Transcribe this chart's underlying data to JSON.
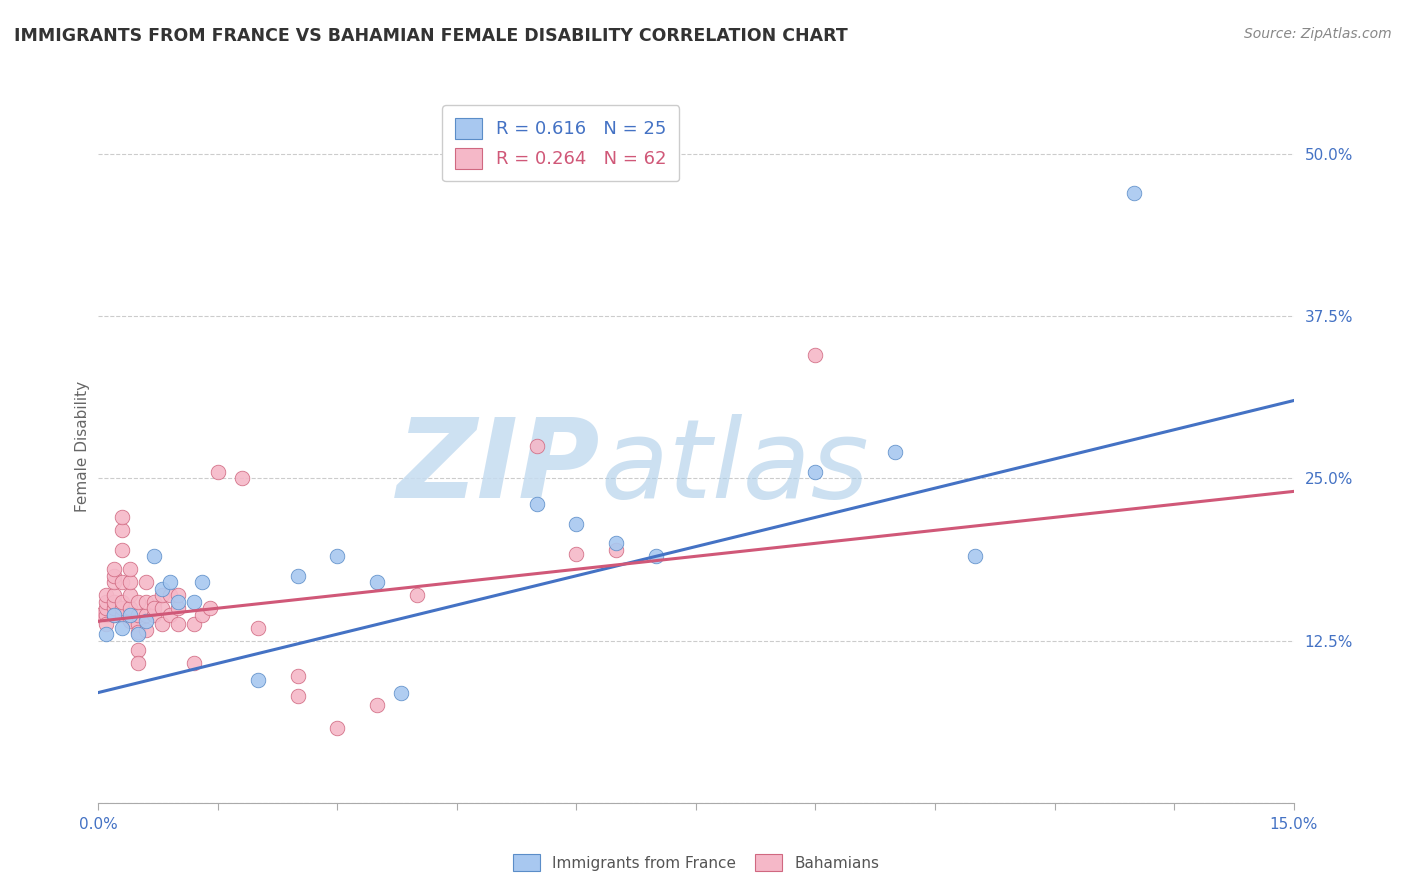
{
  "title": "IMMIGRANTS FROM FRANCE VS BAHAMIAN FEMALE DISABILITY CORRELATION CHART",
  "source": "Source: ZipAtlas.com",
  "ylabel": "Female Disability",
  "xlim": [
    0.0,
    0.15
  ],
  "ylim": [
    0.0,
    0.55
  ],
  "ytick_values": [
    0.0,
    0.125,
    0.25,
    0.375,
    0.5
  ],
  "ytick_labels": [
    "",
    "12.5%",
    "25.0%",
    "37.5%",
    "50.0%"
  ],
  "xtick_values": [
    0.0,
    0.015,
    0.03,
    0.045,
    0.06,
    0.075,
    0.09,
    0.105,
    0.12,
    0.135,
    0.15
  ],
  "xtick_labels": [
    "0.0%",
    "",
    "",
    "",
    "",
    "",
    "",
    "",
    "",
    "",
    "15.0%"
  ],
  "blue_scatter_color": "#A8C8F0",
  "blue_scatter_edge": "#5B8DC8",
  "pink_scatter_color": "#F5B8C8",
  "pink_scatter_edge": "#D06880",
  "blue_line_color": "#4472C4",
  "pink_line_color": "#D05878",
  "legend_blue_R": "0.616",
  "legend_blue_N": "25",
  "legend_pink_R": "0.264",
  "legend_pink_N": "62",
  "grid_color": "#CCCCCC",
  "watermark_color": "#C8DFF0",
  "blue_points": [
    [
      0.001,
      0.13
    ],
    [
      0.002,
      0.145
    ],
    [
      0.003,
      0.135
    ],
    [
      0.004,
      0.145
    ],
    [
      0.005,
      0.13
    ],
    [
      0.006,
      0.14
    ],
    [
      0.007,
      0.19
    ],
    [
      0.008,
      0.165
    ],
    [
      0.009,
      0.17
    ],
    [
      0.01,
      0.155
    ],
    [
      0.012,
      0.155
    ],
    [
      0.013,
      0.17
    ],
    [
      0.02,
      0.095
    ],
    [
      0.025,
      0.175
    ],
    [
      0.03,
      0.19
    ],
    [
      0.035,
      0.17
    ],
    [
      0.038,
      0.085
    ],
    [
      0.055,
      0.23
    ],
    [
      0.06,
      0.215
    ],
    [
      0.065,
      0.2
    ],
    [
      0.07,
      0.19
    ],
    [
      0.09,
      0.255
    ],
    [
      0.1,
      0.27
    ],
    [
      0.11,
      0.19
    ],
    [
      0.13,
      0.47
    ]
  ],
  "pink_points": [
    [
      0.0,
      0.145
    ],
    [
      0.001,
      0.145
    ],
    [
      0.001,
      0.138
    ],
    [
      0.001,
      0.15
    ],
    [
      0.001,
      0.155
    ],
    [
      0.001,
      0.16
    ],
    [
      0.002,
      0.145
    ],
    [
      0.002,
      0.15
    ],
    [
      0.002,
      0.155
    ],
    [
      0.002,
      0.16
    ],
    [
      0.002,
      0.17
    ],
    [
      0.002,
      0.175
    ],
    [
      0.002,
      0.18
    ],
    [
      0.003,
      0.145
    ],
    [
      0.003,
      0.15
    ],
    [
      0.003,
      0.155
    ],
    [
      0.003,
      0.17
    ],
    [
      0.003,
      0.195
    ],
    [
      0.003,
      0.21
    ],
    [
      0.003,
      0.22
    ],
    [
      0.004,
      0.14
    ],
    [
      0.004,
      0.15
    ],
    [
      0.004,
      0.16
    ],
    [
      0.004,
      0.17
    ],
    [
      0.004,
      0.18
    ],
    [
      0.005,
      0.138
    ],
    [
      0.005,
      0.145
    ],
    [
      0.005,
      0.155
    ],
    [
      0.005,
      0.132
    ],
    [
      0.005,
      0.118
    ],
    [
      0.005,
      0.108
    ],
    [
      0.006,
      0.133
    ],
    [
      0.006,
      0.145
    ],
    [
      0.006,
      0.155
    ],
    [
      0.006,
      0.17
    ],
    [
      0.007,
      0.145
    ],
    [
      0.007,
      0.155
    ],
    [
      0.007,
      0.15
    ],
    [
      0.008,
      0.138
    ],
    [
      0.008,
      0.15
    ],
    [
      0.008,
      0.16
    ],
    [
      0.009,
      0.145
    ],
    [
      0.009,
      0.16
    ],
    [
      0.01,
      0.138
    ],
    [
      0.01,
      0.15
    ],
    [
      0.01,
      0.16
    ],
    [
      0.012,
      0.138
    ],
    [
      0.012,
      0.108
    ],
    [
      0.013,
      0.145
    ],
    [
      0.014,
      0.15
    ],
    [
      0.015,
      0.255
    ],
    [
      0.018,
      0.25
    ],
    [
      0.02,
      0.135
    ],
    [
      0.025,
      0.082
    ],
    [
      0.025,
      0.098
    ],
    [
      0.03,
      0.058
    ],
    [
      0.035,
      0.075
    ],
    [
      0.04,
      0.16
    ],
    [
      0.055,
      0.275
    ],
    [
      0.06,
      0.192
    ],
    [
      0.065,
      0.195
    ],
    [
      0.09,
      0.345
    ]
  ],
  "blue_line_x": [
    0.0,
    0.15
  ],
  "blue_line_y": [
    0.085,
    0.31
  ],
  "pink_line_x": [
    0.0,
    0.15
  ],
  "pink_line_y": [
    0.14,
    0.24
  ]
}
